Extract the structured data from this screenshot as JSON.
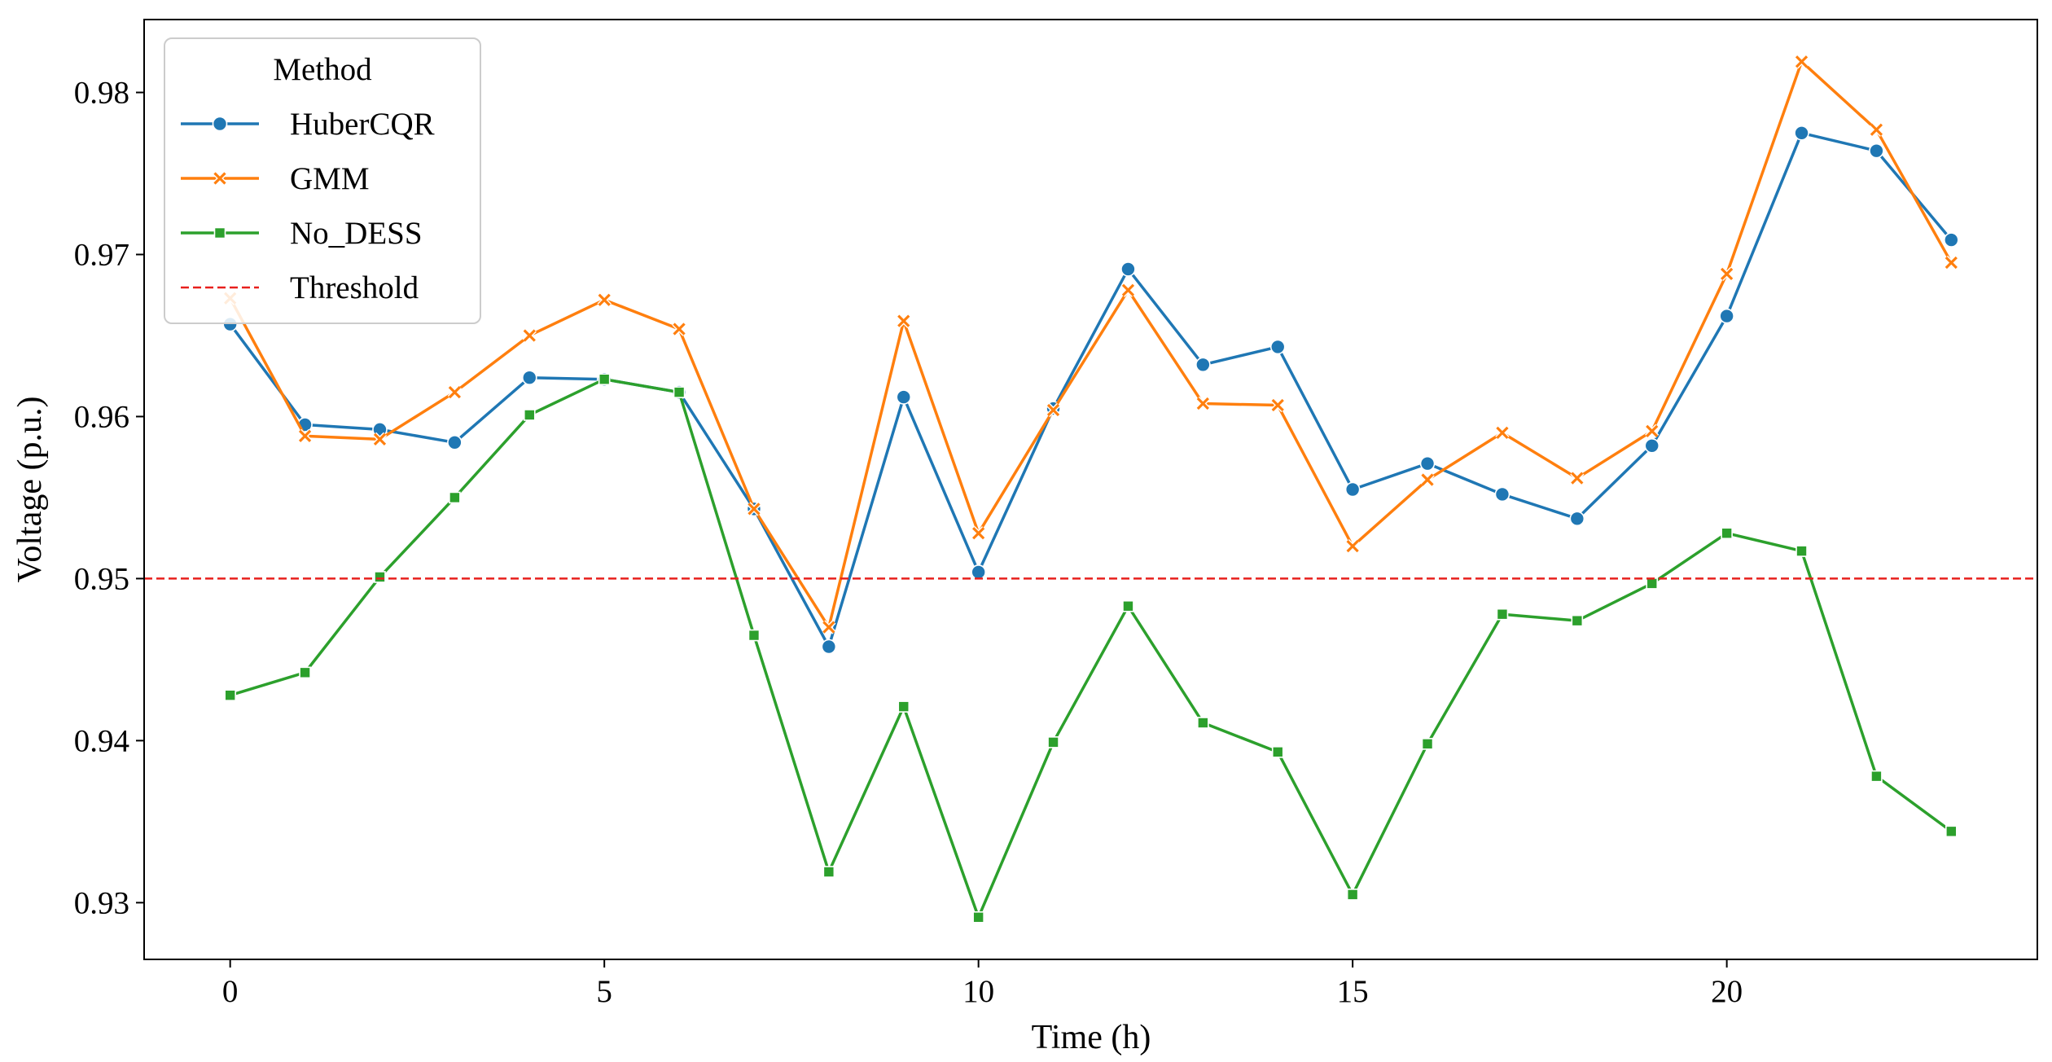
{
  "chart_data": {
    "type": "line",
    "title": "",
    "xlabel": "Time (h)",
    "ylabel": "Voltage (p.u.)",
    "xlim": [
      -1.15,
      24.15
    ],
    "ylim": [
      0.9265,
      0.9845
    ],
    "xticks": [
      0,
      5,
      10,
      15,
      20
    ],
    "xtick_labels": [
      "0",
      "5",
      "10",
      "15",
      "20"
    ],
    "yticks": [
      0.93,
      0.94,
      0.95,
      0.96,
      0.97,
      0.98
    ],
    "ytick_labels": [
      "0.93",
      "0.94",
      "0.95",
      "0.96",
      "0.97",
      "0.98"
    ],
    "grid": false,
    "legend": {
      "title": "Method",
      "position": "top-left"
    },
    "x": [
      0,
      1,
      2,
      3,
      4,
      5,
      6,
      7,
      8,
      9,
      10,
      11,
      12,
      13,
      14,
      15,
      16,
      17,
      18,
      19,
      20,
      21,
      22,
      23
    ],
    "series": [
      {
        "name": "HuberCQR",
        "color": "#1f77b4",
        "marker": "circle",
        "values": [
          0.9657,
          0.9595,
          0.9592,
          0.9584,
          0.9624,
          0.9623,
          0.9615,
          0.9543,
          0.9458,
          0.9612,
          0.9504,
          0.9605,
          0.9691,
          0.9632,
          0.9643,
          0.9555,
          0.9571,
          0.9552,
          0.9537,
          0.9582,
          0.9662,
          0.9775,
          0.9764,
          0.9709
        ]
      },
      {
        "name": "GMM",
        "color": "#ff7f0e",
        "marker": "x",
        "values": [
          0.9673,
          0.9588,
          0.9586,
          0.9615,
          0.965,
          0.9672,
          0.9654,
          0.9543,
          0.947,
          0.9659,
          0.9528,
          0.9604,
          0.9678,
          0.9608,
          0.9607,
          0.952,
          0.9561,
          0.959,
          0.9562,
          0.9591,
          0.9688,
          0.9819,
          0.9777,
          0.9695
        ]
      },
      {
        "name": "No_DESS",
        "color": "#2ca02c",
        "marker": "square",
        "values": [
          0.9428,
          0.9442,
          0.9501,
          0.955,
          0.9601,
          0.9623,
          0.9615,
          0.9465,
          0.9319,
          0.9421,
          0.9291,
          0.9399,
          0.9483,
          0.9411,
          0.9393,
          0.9305,
          0.9398,
          0.9478,
          0.9474,
          0.9497,
          0.9528,
          0.9517,
          0.9378,
          0.9344
        ]
      }
    ],
    "threshold": {
      "name": "Threshold",
      "value": 0.95,
      "color": "#e8201d",
      "style": "dashed"
    }
  }
}
